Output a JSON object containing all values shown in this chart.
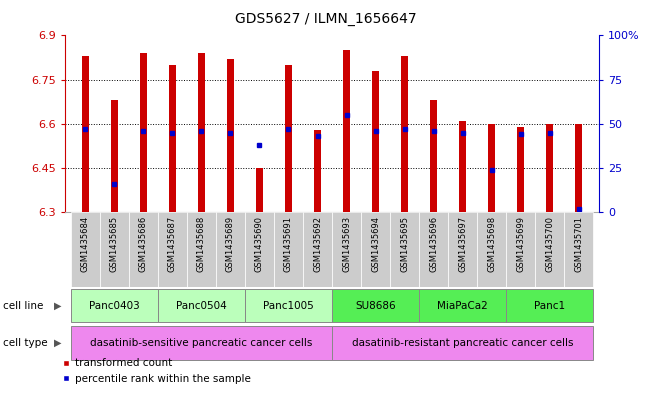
{
  "title": "GDS5627 / ILMN_1656647",
  "samples": [
    "GSM1435684",
    "GSM1435685",
    "GSM1435686",
    "GSM1435687",
    "GSM1435688",
    "GSM1435689",
    "GSM1435690",
    "GSM1435691",
    "GSM1435692",
    "GSM1435693",
    "GSM1435694",
    "GSM1435695",
    "GSM1435696",
    "GSM1435697",
    "GSM1435698",
    "GSM1435699",
    "GSM1435700",
    "GSM1435701"
  ],
  "transformed_count": [
    6.83,
    6.68,
    6.84,
    6.8,
    6.84,
    6.82,
    6.45,
    6.8,
    6.58,
    6.85,
    6.78,
    6.83,
    6.68,
    6.61,
    6.6,
    6.59,
    6.6,
    6.6
  ],
  "percentile_rank": [
    0.47,
    0.16,
    0.46,
    0.45,
    0.46,
    0.45,
    0.38,
    0.47,
    0.43,
    0.55,
    0.46,
    0.47,
    0.46,
    0.45,
    0.24,
    0.44,
    0.45,
    0.02
  ],
  "ymin": 6.3,
  "ymax": 6.9,
  "yticks": [
    6.3,
    6.45,
    6.6,
    6.75,
    6.9
  ],
  "ytick_labels": [
    "6.3",
    "6.45",
    "6.6",
    "6.75",
    "6.9"
  ],
  "right_yticks": [
    0.0,
    0.25,
    0.5,
    0.75,
    1.0
  ],
  "right_ytick_labels": [
    "0",
    "25",
    "50",
    "75",
    "100%"
  ],
  "bar_color": "#cc0000",
  "blue_color": "#0000cc",
  "cell_lines": [
    {
      "label": "Panc0403",
      "start": 0,
      "end": 3,
      "color": "#bbffbb"
    },
    {
      "label": "Panc0504",
      "start": 3,
      "end": 6,
      "color": "#bbffbb"
    },
    {
      "label": "Panc1005",
      "start": 6,
      "end": 9,
      "color": "#bbffbb"
    },
    {
      "label": "SU8686",
      "start": 9,
      "end": 12,
      "color": "#55ee55"
    },
    {
      "label": "MiaPaCa2",
      "start": 12,
      "end": 15,
      "color": "#55ee55"
    },
    {
      "label": "Panc1",
      "start": 15,
      "end": 18,
      "color": "#55ee55"
    }
  ],
  "cell_types": [
    {
      "label": "dasatinib-sensitive pancreatic cancer cells",
      "start": 0,
      "end": 9,
      "color": "#ee88ee"
    },
    {
      "label": "dasatinib-resistant pancreatic cancer cells",
      "start": 9,
      "end": 18,
      "color": "#ee88ee"
    }
  ],
  "axis_left_color": "#cc0000",
  "axis_right_color": "#0000cc",
  "sample_label_fontsize": 6.5,
  "bar_width": 0.25
}
